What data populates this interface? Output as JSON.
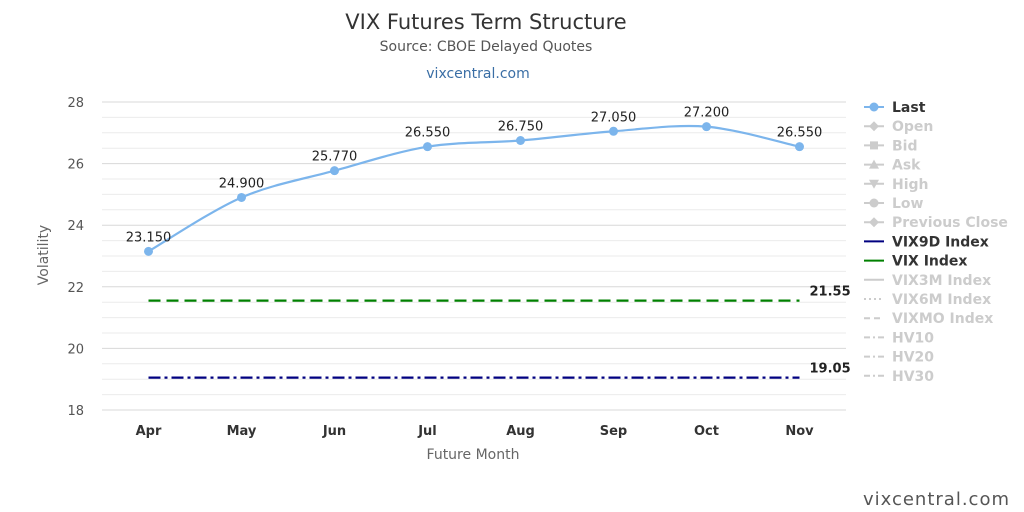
{
  "header": {
    "title": "VIX Futures Term Structure",
    "subtitle": "Source: CBOE Delayed Quotes",
    "link": "vixcentral.com"
  },
  "watermark": "vixcentral.com",
  "colors": {
    "last": "#7cb5ec",
    "vix9d": "#000080",
    "vix": "#008000",
    "legend_active": "#333333",
    "legend_inactive": "#cccccc",
    "grid": "#d8d8d8"
  },
  "chart_data": {
    "type": "line",
    "xlabel": "Future Month",
    "ylabel": "Volatility",
    "categories": [
      "Apr",
      "May",
      "Jun",
      "Jul",
      "Aug",
      "Sep",
      "Oct",
      "Nov"
    ],
    "ylim": [
      18,
      28
    ],
    "yticks": [
      18,
      20,
      22,
      24,
      26,
      28
    ],
    "grid": true,
    "legend_position": "right",
    "series": [
      {
        "name": "Last",
        "values": [
          23.15,
          24.9,
          25.77,
          26.55,
          26.75,
          27.05,
          27.2,
          26.55
        ],
        "labels": [
          "23.150",
          "24.900",
          "25.770",
          "26.550",
          "26.750",
          "27.050",
          "27.200",
          "26.550"
        ],
        "color": "#7cb5ec",
        "style": "smooth-line-with-markers"
      },
      {
        "name": "VIX9D Index",
        "value": 19.05,
        "label": "19.05",
        "color": "#000080",
        "style": "dash-dot"
      },
      {
        "name": "VIX Index",
        "value": 21.55,
        "label": "21.55",
        "color": "#008000",
        "style": "dashed"
      }
    ],
    "legend": [
      {
        "name": "Last",
        "symbol": "line-circle",
        "active": true
      },
      {
        "name": "Open",
        "symbol": "line-diamond",
        "active": false
      },
      {
        "name": "Bid",
        "symbol": "line-square",
        "active": false
      },
      {
        "name": "Ask",
        "symbol": "line-triangle",
        "active": false
      },
      {
        "name": "High",
        "symbol": "line-triangle-down",
        "active": false
      },
      {
        "name": "Low",
        "symbol": "line-circle",
        "active": false
      },
      {
        "name": "Previous Close",
        "symbol": "line-diamond",
        "active": false
      },
      {
        "name": "VIX9D Index",
        "symbol": "solid",
        "active": true,
        "color": "#000080"
      },
      {
        "name": "VIX Index",
        "symbol": "solid",
        "active": true,
        "color": "#008000"
      },
      {
        "name": "VIX3M Index",
        "symbol": "solid",
        "active": false
      },
      {
        "name": "VIX6M Index",
        "symbol": "dotted",
        "active": false
      },
      {
        "name": "VIXMO Index",
        "symbol": "dashed",
        "active": false
      },
      {
        "name": "HV10",
        "symbol": "dash-dot",
        "active": false
      },
      {
        "name": "HV20",
        "symbol": "dash-dot",
        "active": false
      },
      {
        "name": "HV30",
        "symbol": "dash-dot",
        "active": false
      }
    ]
  }
}
